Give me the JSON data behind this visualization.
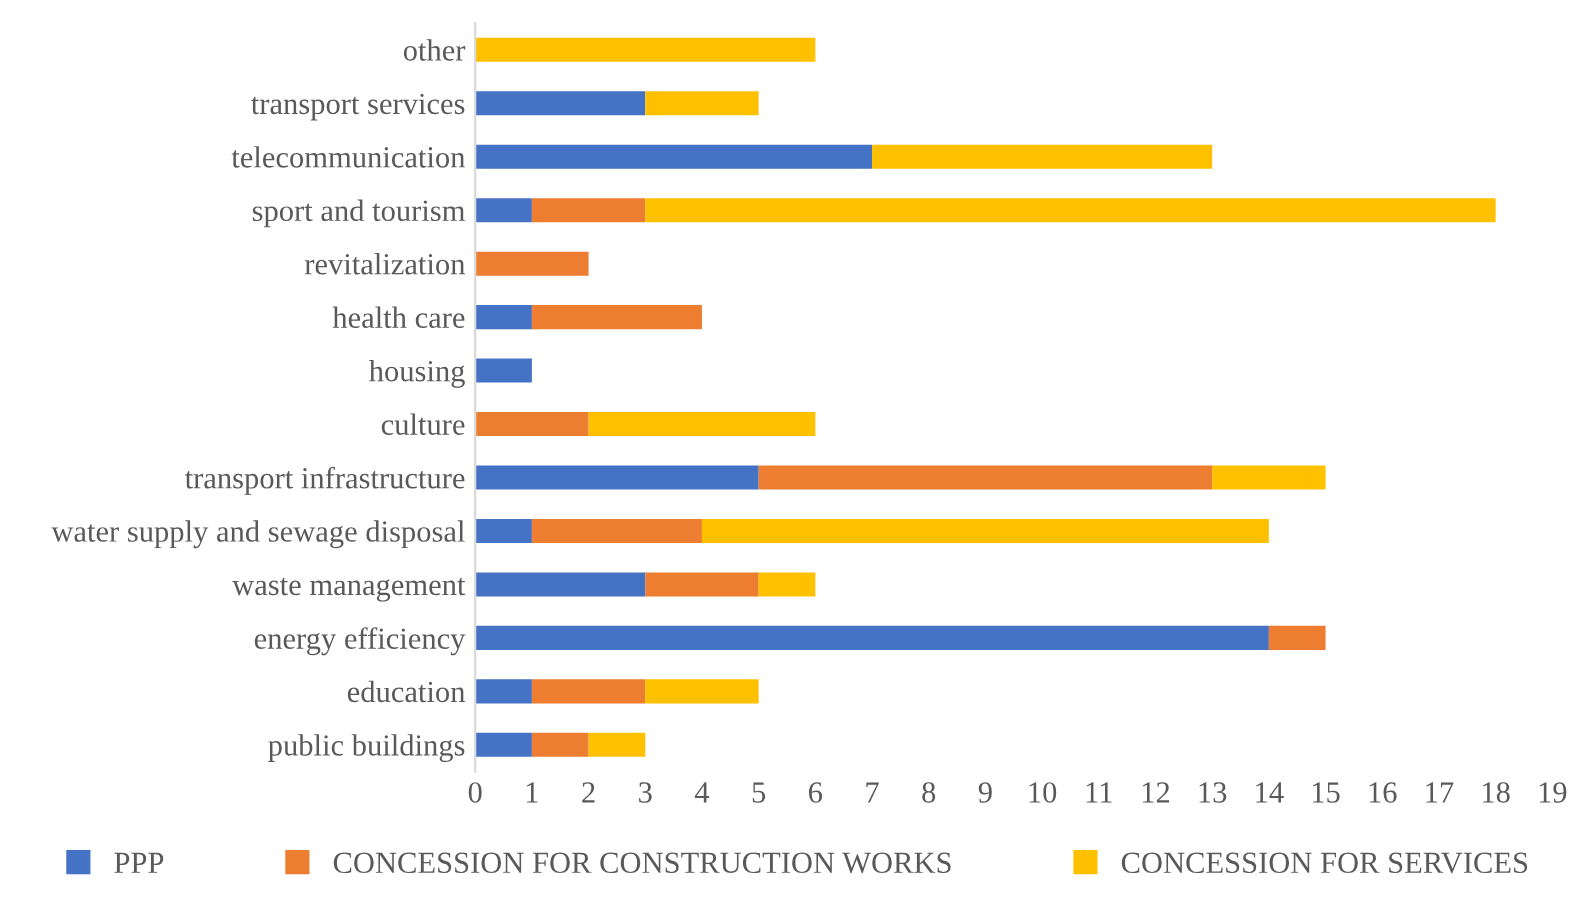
{
  "chart_data": {
    "type": "bar",
    "orientation": "horizontal",
    "stacked": true,
    "categories": [
      "other",
      "transport services",
      "telecommunication",
      "sport and tourism",
      "revitalization",
      "health care",
      "housing",
      "culture",
      "transport infrastructure",
      "water supply and sewage disposal",
      "waste management",
      "energy efficiency",
      "education",
      "public buildings"
    ],
    "series": [
      {
        "name": "PPP",
        "color": "#4472c4",
        "values": [
          null,
          3,
          7,
          1,
          null,
          1,
          1,
          null,
          5,
          1,
          3,
          14,
          1,
          1
        ]
      },
      {
        "name": "CONCESSION FOR CONSTRUCTION WORKS",
        "color": "#ed7d31",
        "values": [
          null,
          null,
          null,
          2,
          2,
          3,
          null,
          2,
          8,
          3,
          2,
          1,
          2,
          1
        ]
      },
      {
        "name": "CONCESSION FOR SERVICES",
        "color": "#ffc000",
        "values": [
          6,
          2,
          6,
          15,
          null,
          null,
          null,
          4,
          2,
          10,
          1,
          null,
          2,
          1
        ]
      }
    ],
    "xlim": [
      0,
      19
    ],
    "xticks": [
      0,
      1,
      2,
      3,
      4,
      5,
      6,
      7,
      8,
      9,
      10,
      11,
      12,
      13,
      14,
      15,
      16,
      17,
      18,
      19
    ],
    "grid": false,
    "legend": "bottom"
  }
}
